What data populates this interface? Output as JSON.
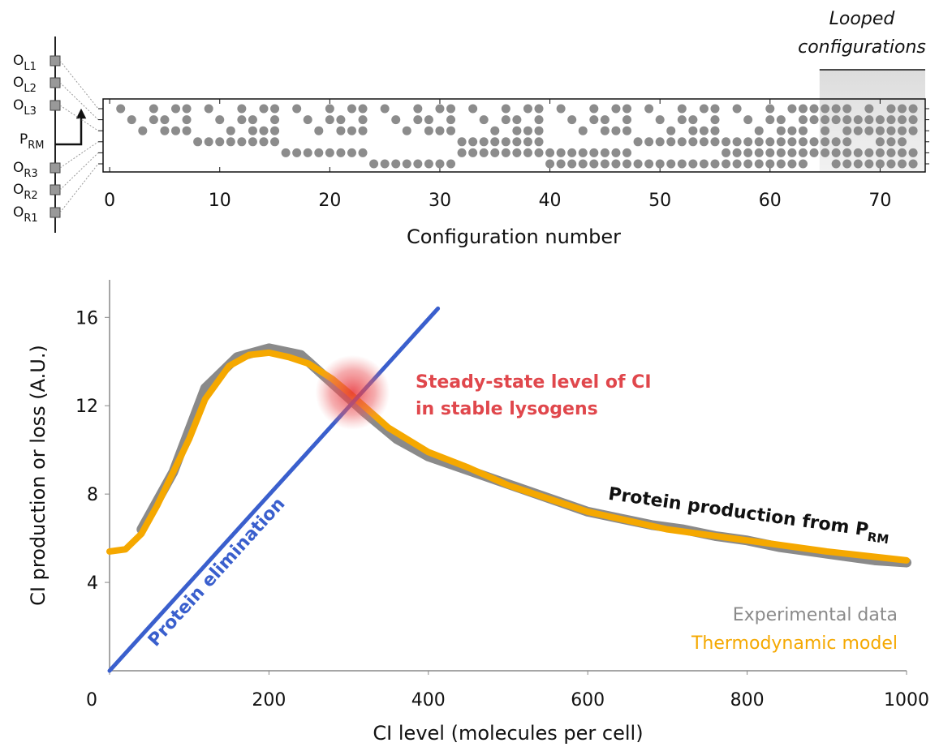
{
  "chart_data": [
    {
      "type": "dot-matrix",
      "xlabel": "Configuration number",
      "xlim": [
        -0.6,
        74.1
      ],
      "xticks": [
        0,
        10,
        20,
        30,
        40,
        50,
        60,
        70
      ],
      "sites": [
        {
          "name": "O",
          "sub": "L1"
        },
        {
          "name": "O",
          "sub": "L2"
        },
        {
          "name": "O",
          "sub": "L3"
        },
        {
          "name": "O",
          "sub": "R3"
        },
        {
          "name": "O",
          "sub": "R2"
        },
        {
          "name": "O",
          "sub": "R1"
        }
      ],
      "promoter": {
        "name": "P",
        "sub": "RM"
      },
      "color": "#8c8c8c",
      "looped_label": [
        "Looped",
        "configurations"
      ],
      "looped_range": [
        64.5,
        74.1
      ],
      "configurations": [
        [
          0
        ],
        [
          1
        ],
        [
          2
        ],
        [
          0,
          1
        ],
        [
          1,
          2
        ],
        [
          0,
          2
        ],
        [
          0,
          1,
          2
        ],
        [
          3
        ],
        [
          0,
          3
        ],
        [
          1,
          3
        ],
        [
          2,
          3
        ],
        [
          0,
          1,
          3
        ],
        [
          1,
          2,
          3
        ],
        [
          0,
          2,
          3
        ],
        [
          0,
          1,
          2,
          3
        ],
        [
          4
        ],
        [
          0,
          4
        ],
        [
          1,
          4
        ],
        [
          2,
          4
        ],
        [
          0,
          1,
          4
        ],
        [
          1,
          2,
          4
        ],
        [
          0,
          2,
          4
        ],
        [
          0,
          1,
          2,
          4
        ],
        [
          5
        ],
        [
          0,
          5
        ],
        [
          1,
          5
        ],
        [
          2,
          5
        ],
        [
          0,
          1,
          5
        ],
        [
          1,
          2,
          5
        ],
        [
          0,
          2,
          5
        ],
        [
          0,
          1,
          2,
          5
        ],
        [
          3,
          4
        ],
        [
          0,
          3,
          4
        ],
        [
          1,
          3,
          4
        ],
        [
          2,
          3,
          4
        ],
        [
          0,
          1,
          3,
          4
        ],
        [
          1,
          2,
          3,
          4
        ],
        [
          0,
          2,
          3,
          4
        ],
        [
          0,
          1,
          2,
          3,
          4
        ],
        [
          4,
          5
        ],
        [
          0,
          4,
          5
        ],
        [
          1,
          4,
          5
        ],
        [
          2,
          4,
          5
        ],
        [
          0,
          1,
          4,
          5
        ],
        [
          1,
          2,
          4,
          5
        ],
        [
          0,
          2,
          4,
          5
        ],
        [
          0,
          1,
          2,
          4,
          5
        ],
        [
          3,
          5
        ],
        [
          0,
          3,
          5
        ],
        [
          1,
          3,
          5
        ],
        [
          2,
          3,
          5
        ],
        [
          0,
          1,
          3,
          5
        ],
        [
          1,
          2,
          3,
          5
        ],
        [
          0,
          2,
          3,
          5
        ],
        [
          0,
          1,
          2,
          3,
          5
        ],
        [
          3,
          4,
          5
        ],
        [
          0,
          3,
          4,
          5
        ],
        [
          1,
          3,
          4,
          5
        ],
        [
          2,
          3,
          4,
          5
        ],
        [
          0,
          1,
          3,
          4,
          5
        ],
        [
          1,
          2,
          3,
          4,
          5
        ],
        [
          0,
          2,
          3,
          4,
          5
        ],
        [
          0,
          1,
          2,
          3,
          4,
          5
        ],
        [
          0,
          1,
          3,
          4
        ],
        [
          0,
          1,
          2,
          3,
          4
        ],
        [
          0,
          1,
          3,
          4,
          5
        ],
        [
          0,
          1,
          2,
          3,
          4,
          5
        ],
        [
          1,
          2,
          4,
          5
        ],
        [
          0,
          1,
          2,
          4,
          5
        ],
        [
          1,
          2,
          3,
          4,
          5
        ],
        [
          0,
          1,
          2,
          3,
          4,
          5
        ],
        [
          0,
          1,
          2,
          3,
          4,
          5
        ],
        [
          0,
          1,
          2,
          4,
          5
        ]
      ]
    },
    {
      "type": "line",
      "xlabel": "CI level (molecules per cell)",
      "ylabel": "CI production or loss (A.U.)",
      "xlim": [
        0,
        1000
      ],
      "ylim": [
        0,
        17.7
      ],
      "xticks": [
        0,
        200,
        400,
        600,
        800,
        1000
      ],
      "yticks": [
        4,
        8,
        12,
        16
      ],
      "series": [
        {
          "name": "Experimental data",
          "color": "#8a8a8a",
          "x": [
            40,
            80,
            120,
            160,
            200,
            240,
            280,
            320,
            360,
            400,
            440,
            480,
            520,
            560,
            600,
            640,
            680,
            720,
            760,
            800,
            840,
            880,
            920,
            960,
            1000
          ],
          "values": [
            6.4,
            9.0,
            12.8,
            14.2,
            14.6,
            14.3,
            13.0,
            11.7,
            10.5,
            9.7,
            9.2,
            8.7,
            8.2,
            7.7,
            7.2,
            6.9,
            6.6,
            6.4,
            6.1,
            5.9,
            5.6,
            5.4,
            5.2,
            5.0,
            4.9
          ]
        },
        {
          "name": "Thermodynamic model",
          "color": "#f5a800",
          "x": [
            0,
            20,
            40,
            60,
            80,
            100,
            120,
            150,
            175,
            200,
            225,
            250,
            280,
            300,
            350,
            400,
            450,
            500,
            600,
            700,
            800,
            900,
            1000
          ],
          "values": [
            5.4,
            5.5,
            6.2,
            7.5,
            9.0,
            10.5,
            12.3,
            13.8,
            14.3,
            14.4,
            14.2,
            13.9,
            13.2,
            12.6,
            11.0,
            9.9,
            9.2,
            8.4,
            7.2,
            6.4,
            5.9,
            5.4,
            5.0
          ]
        },
        {
          "name": "Protein elimination",
          "color": "#3a5fcd",
          "x": [
            0,
            412
          ],
          "values": [
            0,
            16.4
          ]
        }
      ],
      "curve_label": {
        "text": "Protein production from P",
        "sub": "RM"
      },
      "steady_state": {
        "lines": [
          "Steady-state level of CI",
          "in stable lysogens"
        ],
        "color": "#e0474c",
        "x": 305,
        "y": 12.6
      }
    }
  ]
}
